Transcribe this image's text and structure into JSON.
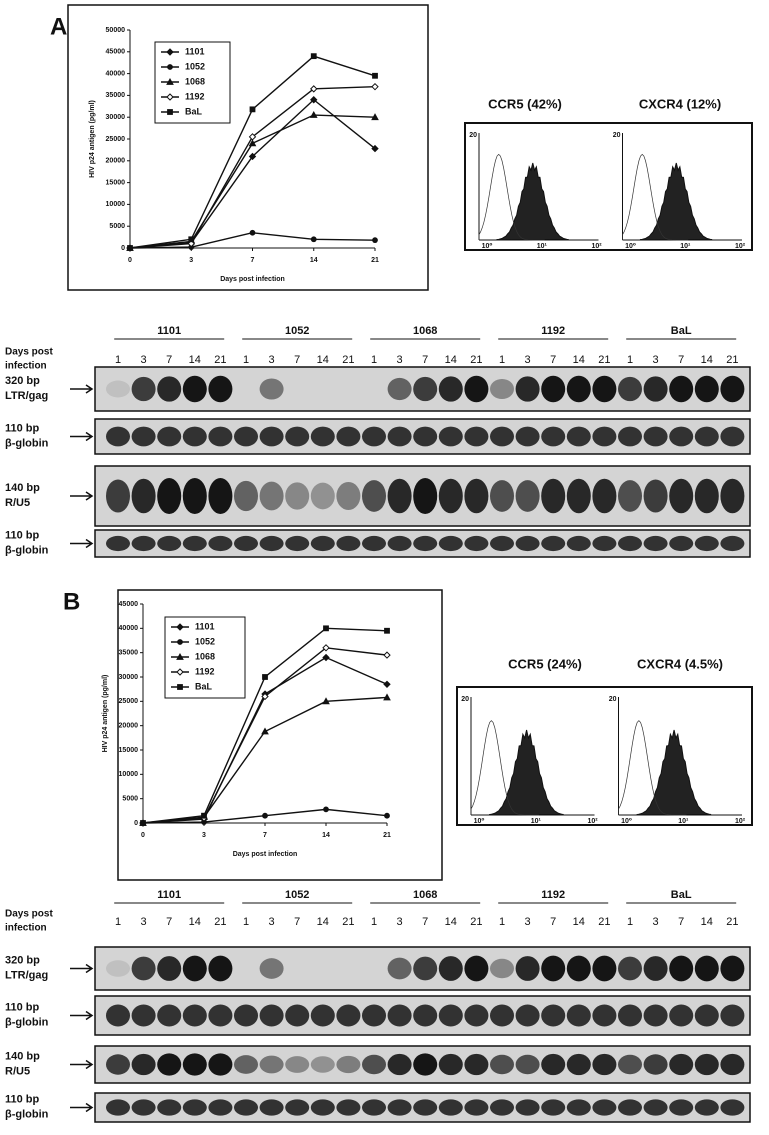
{
  "chart_data": [
    {
      "type": "line",
      "panel": "A",
      "ylabel": "HIV p24 antigen (pg/ml)",
      "xlabel": "Days post infection",
      "categories": [
        "0",
        "3",
        "7",
        "14",
        "21"
      ],
      "ylim": [
        0,
        50000
      ],
      "yticks": [
        0,
        5000,
        10000,
        15000,
        20000,
        25000,
        30000,
        35000,
        40000,
        45000,
        50000
      ],
      "series": [
        {
          "name": "1101",
          "marker": "diamond",
          "color": "#111111",
          "values": [
            0,
            1200,
            21000,
            34000,
            22800
          ]
        },
        {
          "name": "1052",
          "marker": "circle",
          "color": "#111111",
          "values": [
            0,
            200,
            3500,
            2000,
            1800
          ]
        },
        {
          "name": "1068",
          "marker": "triangle",
          "color": "#111111",
          "values": [
            0,
            1500,
            24000,
            30500,
            30000
          ]
        },
        {
          "name": "1192",
          "marker": "diamond-open",
          "color": "#111111",
          "values": [
            0,
            1000,
            25500,
            36500,
            37000
          ]
        },
        {
          "name": "BaL",
          "marker": "square",
          "color": "#111111",
          "values": [
            0,
            2000,
            31800,
            44000,
            39500
          ]
        }
      ]
    },
    {
      "type": "line",
      "panel": "B",
      "ylabel": "HIV p24 antigen (pg/ml)",
      "xlabel": "Days post infection",
      "categories": [
        "0",
        "3",
        "7",
        "14",
        "21"
      ],
      "ylim": [
        0,
        45000
      ],
      "yticks": [
        0,
        5000,
        10000,
        15000,
        20000,
        25000,
        30000,
        35000,
        40000,
        45000
      ],
      "series": [
        {
          "name": "1101",
          "marker": "diamond",
          "color": "#111111",
          "values": [
            0,
            800,
            26500,
            34000,
            28500
          ]
        },
        {
          "name": "1052",
          "marker": "circle",
          "color": "#111111",
          "values": [
            0,
            200,
            1500,
            2800,
            1500
          ]
        },
        {
          "name": "1068",
          "marker": "triangle",
          "color": "#111111",
          "values": [
            0,
            1200,
            18800,
            25000,
            25800
          ]
        },
        {
          "name": "1192",
          "marker": "diamond-open",
          "color": "#111111",
          "values": [
            0,
            1000,
            26000,
            36000,
            34500
          ]
        },
        {
          "name": "BaL",
          "marker": "square",
          "color": "#111111",
          "values": [
            0,
            1500,
            30000,
            40000,
            39500
          ]
        }
      ]
    }
  ],
  "flow": [
    {
      "titles": [
        "CCR5 (42%)",
        "CXCR4 (12%)"
      ]
    },
    {
      "titles": [
        "CCR5 (24%)",
        "CXCR4 (4.5%)"
      ]
    }
  ],
  "flow_ticks": [
    "20",
    "10⁰",
    "10¹",
    "10²"
  ],
  "gel": {
    "days_label": [
      "Days post",
      "infection"
    ],
    "groups": [
      "1101",
      "1052",
      "1068",
      "1192",
      "BaL"
    ],
    "days": [
      "1",
      "3",
      "7",
      "14",
      "21"
    ],
    "rows": [
      {
        "size": "320 bp",
        "name": "LTR/gag"
      },
      {
        "size": "110 bp",
        "name": "β-globin"
      },
      {
        "size": "140 bp",
        "name": "R/U5"
      },
      {
        "size": "110 bp",
        "name": "β-globin"
      }
    ]
  }
}
